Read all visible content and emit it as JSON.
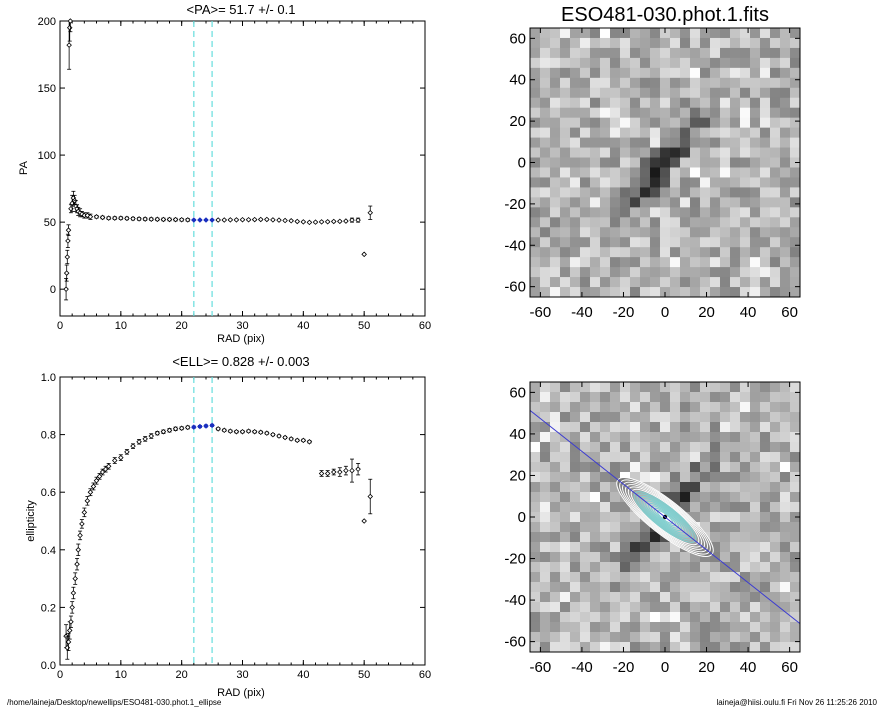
{
  "footer": {
    "path": "/home/laineja/Desktop/newellips/ESO481-030.phot.1_ellipse",
    "user_time": "laineja@hiisi.oulu.fi  Fri Nov 26 11:25:26 2010"
  },
  "colors": {
    "axis": "#000000",
    "marker": "#000000",
    "highlight": "#1a2fbf",
    "vline": "#66dddd",
    "major_axis_line": "#3b3bd1"
  },
  "chart_data": [
    {
      "type": "scatter",
      "title": "<PA>=  51.7 +/-   0.1",
      "xlabel": "RAD (pix)",
      "ylabel": "PA",
      "xlim": [
        0,
        60
      ],
      "ylim": [
        -20,
        200
      ],
      "xticks": [
        0,
        10,
        20,
        30,
        40,
        50,
        60
      ],
      "yticks": [
        0,
        50,
        100,
        150,
        200
      ],
      "vlines": [
        22,
        25
      ],
      "highlight_range": [
        22,
        25
      ],
      "grid": false,
      "points": [
        [
          1.0,
          0,
          8
        ],
        [
          1.1,
          12,
          6
        ],
        [
          1.2,
          24,
          5
        ],
        [
          1.3,
          36,
          5
        ],
        [
          1.4,
          44,
          4
        ],
        [
          1.5,
          182,
          18
        ],
        [
          1.6,
          195,
          10
        ],
        [
          1.7,
          200,
          8
        ],
        [
          1.8,
          60,
          3
        ],
        [
          2.0,
          64,
          6
        ],
        [
          2.2,
          68,
          5
        ],
        [
          2.4,
          66,
          4
        ],
        [
          2.6,
          62,
          4
        ],
        [
          2.8,
          60,
          3
        ],
        [
          3.0,
          58,
          3
        ],
        [
          3.3,
          57,
          3
        ],
        [
          3.6,
          56,
          2
        ],
        [
          4.0,
          55,
          2
        ],
        [
          4.5,
          55,
          2
        ],
        [
          5.0,
          54,
          2
        ],
        [
          6,
          54,
          1
        ],
        [
          7,
          53.5,
          1
        ],
        [
          8,
          53,
          1
        ],
        [
          9,
          53,
          1
        ],
        [
          10,
          53,
          1
        ],
        [
          11,
          52.8,
          1
        ],
        [
          12,
          52.6,
          1
        ],
        [
          13,
          52.4,
          1
        ],
        [
          14,
          52.3,
          1
        ],
        [
          15,
          52.2,
          1
        ],
        [
          16,
          52.1,
          1
        ],
        [
          17,
          52,
          1
        ],
        [
          18,
          52,
          1
        ],
        [
          19,
          51.9,
          1
        ],
        [
          20,
          51.8,
          1
        ],
        [
          21,
          51.7,
          1
        ],
        [
          22,
          51.6,
          0.5
        ],
        [
          23,
          51.6,
          0.5
        ],
        [
          24,
          51.6,
          0.5
        ],
        [
          25,
          51.6,
          0.5
        ],
        [
          26,
          51.6,
          0.5
        ],
        [
          27,
          51.6,
          0.5
        ],
        [
          28,
          51.7,
          0.5
        ],
        [
          29,
          51.7,
          0.5
        ],
        [
          30,
          51.8,
          0.5
        ],
        [
          31,
          51.8,
          0.5
        ],
        [
          32,
          51.9,
          0.5
        ],
        [
          33,
          52,
          0.5
        ],
        [
          34,
          52,
          0.5
        ],
        [
          35,
          51.7,
          0.5
        ],
        [
          36,
          51.5,
          0.5
        ],
        [
          37,
          51.2,
          0.5
        ],
        [
          38,
          51.0,
          0.5
        ],
        [
          39,
          50.5,
          0.5
        ],
        [
          40,
          50.2,
          0.5
        ],
        [
          41,
          49.8,
          0.5
        ],
        [
          42,
          50.0,
          0.5
        ],
        [
          43,
          50.2,
          0.5
        ],
        [
          44,
          50.3,
          0.5
        ],
        [
          45,
          50.5,
          0.5
        ],
        [
          46,
          50.6,
          0.5
        ],
        [
          47,
          50.8,
          0.5
        ],
        [
          48,
          51.5,
          1.5
        ],
        [
          49,
          51.5,
          1.5
        ],
        [
          50,
          26,
          0
        ],
        [
          51,
          57,
          5
        ]
      ]
    },
    {
      "type": "scatter",
      "title": "<ELL>= 0.828 +/-  0.003",
      "xlabel": "RAD (pix)",
      "ylabel": "ellipticity",
      "xlim": [
        0,
        60
      ],
      "ylim": [
        0.0,
        1.0
      ],
      "xticks": [
        0,
        10,
        20,
        30,
        40,
        50,
        60
      ],
      "yticks": [
        0.0,
        0.2,
        0.4,
        0.6,
        0.8,
        1.0
      ],
      "vlines": [
        22,
        25
      ],
      "highlight_range": [
        22,
        25
      ],
      "grid": false,
      "points": [
        [
          1.0,
          0.1,
          0.04
        ],
        [
          1.2,
          0.06,
          0.04
        ],
        [
          1.4,
          0.08,
          0.03
        ],
        [
          1.6,
          0.12,
          0.03
        ],
        [
          1.8,
          0.15,
          0.02
        ],
        [
          2.0,
          0.2,
          0.02
        ],
        [
          2.2,
          0.25,
          0.02
        ],
        [
          2.5,
          0.3,
          0.02
        ],
        [
          2.8,
          0.35,
          0.02
        ],
        [
          3.0,
          0.4,
          0.02
        ],
        [
          3.3,
          0.45,
          0.015
        ],
        [
          3.6,
          0.49,
          0.015
        ],
        [
          4.0,
          0.53,
          0.015
        ],
        [
          4.5,
          0.57,
          0.015
        ],
        [
          5.0,
          0.6,
          0.012
        ],
        [
          5.5,
          0.62,
          0.012
        ],
        [
          6.0,
          0.64,
          0.012
        ],
        [
          6.5,
          0.655,
          0.01
        ],
        [
          7.0,
          0.67,
          0.01
        ],
        [
          7.5,
          0.68,
          0.01
        ],
        [
          8.0,
          0.69,
          0.01
        ],
        [
          9.0,
          0.71,
          0.01
        ],
        [
          10.0,
          0.72,
          0.01
        ],
        [
          11.0,
          0.74,
          0.008
        ],
        [
          12.0,
          0.76,
          0.008
        ],
        [
          13.0,
          0.775,
          0.008
        ],
        [
          14.0,
          0.785,
          0.008
        ],
        [
          15.0,
          0.795,
          0.008
        ],
        [
          16.0,
          0.805,
          0.006
        ],
        [
          17.0,
          0.81,
          0.006
        ],
        [
          18.0,
          0.815,
          0.006
        ],
        [
          19.0,
          0.82,
          0.006
        ],
        [
          20.0,
          0.822,
          0.005
        ],
        [
          21.0,
          0.825,
          0.005
        ],
        [
          22.0,
          0.826,
          0.004
        ],
        [
          23.0,
          0.828,
          0.004
        ],
        [
          24.0,
          0.83,
          0.004
        ],
        [
          25.0,
          0.832,
          0.004
        ],
        [
          26.0,
          0.82,
          0.004
        ],
        [
          27.0,
          0.815,
          0.004
        ],
        [
          28.0,
          0.812,
          0.004
        ],
        [
          29.0,
          0.81,
          0.004
        ],
        [
          30.0,
          0.81,
          0.004
        ],
        [
          31.0,
          0.812,
          0.004
        ],
        [
          32.0,
          0.81,
          0.004
        ],
        [
          33.0,
          0.808,
          0.004
        ],
        [
          34.0,
          0.805,
          0.004
        ],
        [
          35.0,
          0.8,
          0.004
        ],
        [
          36.0,
          0.795,
          0.004
        ],
        [
          37.0,
          0.79,
          0.004
        ],
        [
          38.0,
          0.785,
          0.004
        ],
        [
          39.0,
          0.78,
          0.004
        ],
        [
          40.0,
          0.78,
          0.004
        ],
        [
          41.0,
          0.775,
          0.004
        ],
        [
          43.0,
          0.665,
          0.01
        ],
        [
          44.0,
          0.665,
          0.01
        ],
        [
          45.0,
          0.67,
          0.01
        ],
        [
          46.0,
          0.67,
          0.015
        ],
        [
          47.0,
          0.675,
          0.015
        ],
        [
          48.0,
          0.675,
          0.04
        ],
        [
          49.0,
          0.68,
          0.02
        ],
        [
          50.0,
          0.5,
          0
        ],
        [
          51.0,
          0.585,
          0.06
        ]
      ]
    }
  ],
  "images": [
    {
      "title": "ESO481-030.phot.1.fits",
      "xlim": [
        -65,
        65
      ],
      "ylim": [
        -65,
        65
      ],
      "xticks": [
        -60,
        -40,
        -20,
        0,
        20,
        40,
        60
      ],
      "yticks": [
        -60,
        -40,
        -20,
        0,
        20,
        40,
        60
      ],
      "xtick_labels": [
        "-60",
        "-40",
        "-20",
        "0",
        "20",
        "40",
        "60"
      ],
      "ytick_labels": [
        "60",
        "40",
        "20",
        "0",
        "-20",
        "-40",
        "-60"
      ]
    },
    {
      "title": "",
      "xlim": [
        -65,
        65
      ],
      "ylim": [
        -65,
        65
      ],
      "xticks": [
        -60,
        -40,
        -20,
        0,
        20,
        40,
        60
      ],
      "yticks": [
        -60,
        -40,
        -20,
        0,
        20,
        40,
        60
      ],
      "xtick_labels": [
        "-60",
        "-40",
        "-20",
        "0",
        "20",
        "40",
        "60"
      ],
      "ytick_labels": [
        "60",
        "40",
        "20",
        "0",
        "-20",
        "-40",
        "-60"
      ]
    }
  ]
}
